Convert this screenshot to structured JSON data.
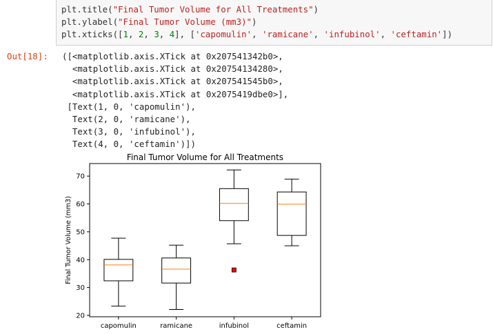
{
  "cell": {
    "code_lines": [
      [
        {
          "t": "plt.title("
        },
        {
          "t": "\"Final Tumor Volume for All Treatments\"",
          "c": "str"
        },
        {
          "t": ")"
        }
      ],
      [
        {
          "t": "plt.ylabel("
        },
        {
          "t": "\"Final Tumor Volume (mm3)\"",
          "c": "str"
        },
        {
          "t": ")"
        }
      ],
      [
        {
          "t": "plt.xticks(["
        },
        {
          "t": "1",
          "c": "num"
        },
        {
          "t": ", "
        },
        {
          "t": "2",
          "c": "num"
        },
        {
          "t": ", "
        },
        {
          "t": "3",
          "c": "num"
        },
        {
          "t": ", "
        },
        {
          "t": "4",
          "c": "num"
        },
        {
          "t": "], ["
        },
        {
          "t": "'capomulin'",
          "c": "str"
        },
        {
          "t": ", "
        },
        {
          "t": "'ramicane'",
          "c": "str"
        },
        {
          "t": ", "
        },
        {
          "t": "'infubinol'",
          "c": "str"
        },
        {
          "t": ", "
        },
        {
          "t": "'ceftamin'",
          "c": "str"
        },
        {
          "t": "])"
        }
      ]
    ],
    "out_prompt": "Out[18]:",
    "output_lines": [
      "([<matplotlib.axis.XTick at 0x207541342b0>,",
      "  <matplotlib.axis.XTick at 0x20754134280>,",
      "  <matplotlib.axis.XTick at 0x207541545b0>,",
      "  <matplotlib.axis.XTick at 0x2075419dbe0>],",
      " [Text(1, 0, 'capomulin'),",
      "  Text(2, 0, 'ramicane'),",
      "  Text(3, 0, 'infubinol'),",
      "  Text(4, 0, 'ceftamin')])"
    ]
  },
  "chart_data": {
    "type": "box",
    "title": "Final Tumor Volume for All Treatments",
    "ylabel": "Final Tumor Volume (mm3)",
    "xlabel": "",
    "categories": [
      "capomulin",
      "ramicane",
      "infubinol",
      "ceftamin"
    ],
    "ylim": [
      19.5,
      74.5
    ],
    "yticks": [
      20,
      30,
      40,
      50,
      60,
      70
    ],
    "boxes": [
      {
        "whisker_low": 23.3,
        "q1": 32.4,
        "median": 38.1,
        "q3": 40.1,
        "whisker_high": 47.7
      },
      {
        "whisker_low": 22.1,
        "q1": 31.6,
        "median": 36.6,
        "q3": 40.6,
        "whisker_high": 45.2
      },
      {
        "whisker_low": 45.7,
        "q1": 54.0,
        "median": 60.2,
        "q3": 65.5,
        "whisker_high": 72.2
      },
      {
        "whisker_low": 45.0,
        "q1": 48.7,
        "median": 59.9,
        "q3": 64.3,
        "whisker_high": 68.9
      }
    ],
    "outliers": [
      {
        "category": "infubinol",
        "value": 36.3
      }
    ],
    "colors": {
      "box": "#000000",
      "median": "#ff7f0e",
      "outlier": "#ff0000",
      "axes": "#000000"
    }
  }
}
